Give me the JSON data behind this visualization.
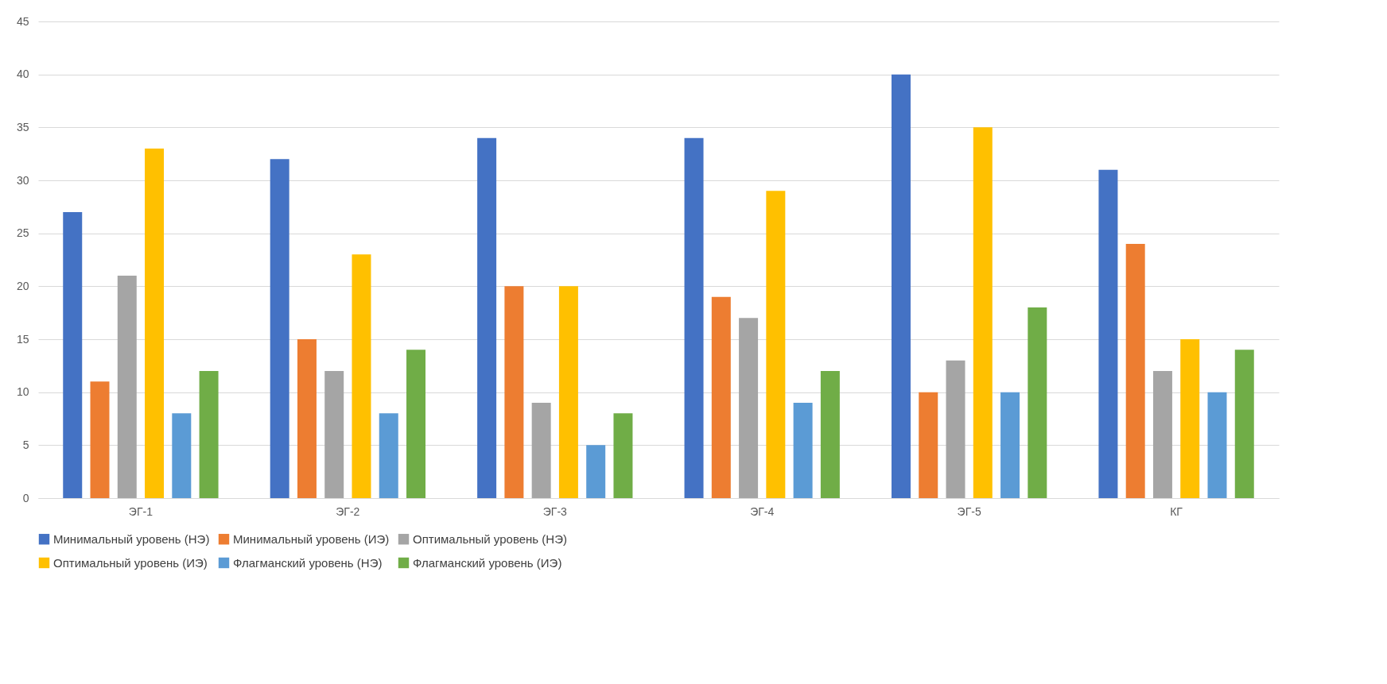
{
  "chart_data": {
    "type": "bar",
    "categories": [
      "ЭГ-1",
      "ЭГ-2",
      "ЭГ-3",
      "ЭГ-4",
      "ЭГ-5",
      "КГ"
    ],
    "series": [
      {
        "name": "Минимальный уровень (НЭ)",
        "color": "#4472c4",
        "values": [
          27,
          32,
          34,
          34,
          40,
          31
        ]
      },
      {
        "name": "Минимальный уровень (ИЭ)",
        "color": "#ed7d31",
        "values": [
          11,
          15,
          20,
          19,
          10,
          24
        ]
      },
      {
        "name": "Оптимальный уровень (НЭ)",
        "color": "#a5a5a5",
        "values": [
          21,
          12,
          9,
          17,
          13,
          12
        ]
      },
      {
        "name": "Оптимальный уровень (ИЭ)",
        "color": "#ffc000",
        "values": [
          33,
          23,
          20,
          29,
          35,
          15
        ]
      },
      {
        "name": "Флагманский уровень (НЭ)",
        "color": "#5b9bd5",
        "values": [
          8,
          8,
          5,
          9,
          10,
          10
        ]
      },
      {
        "name": "Флагманский уровень (ИЭ)",
        "color": "#70ad47",
        "values": [
          12,
          14,
          8,
          12,
          18,
          14
        ]
      }
    ],
    "ylim": [
      0,
      45
    ],
    "yticks": [
      0,
      5,
      10,
      15,
      20,
      25,
      30,
      35,
      40,
      45
    ],
    "grid": "y",
    "legend": "bottom"
  }
}
